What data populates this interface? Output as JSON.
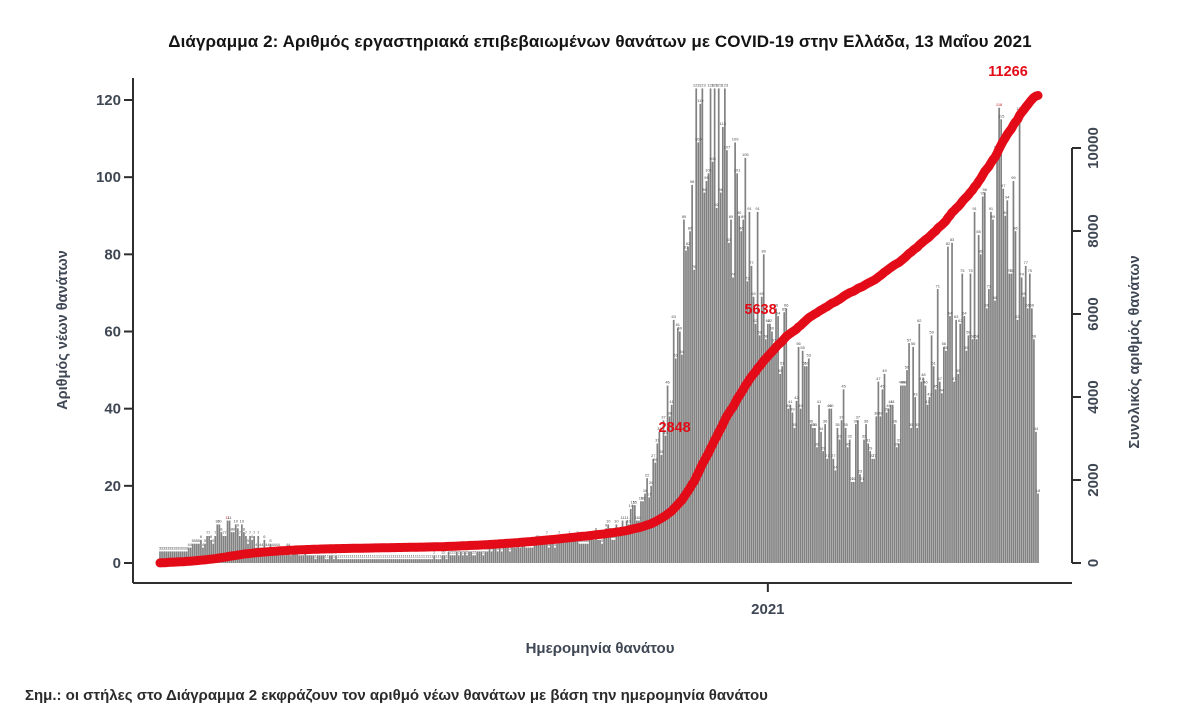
{
  "page": {
    "note": "Σημ.: οι στήλες στο Διάγραμμα 2 εκφράζουν τον αριθμό νέων θανάτων με βάση την ημερομηνία θανάτου"
  },
  "chart_data": {
    "type": "bar",
    "title": "Διάγραμμα 2: Αριθμός εργαστηριακά επιβεβαιωμένων θανάτων με COVID-19 στην Ελλάδα, 13 Μαΐου 2021",
    "xlabel": "Ημερομηνία θανάτου",
    "ylabel_left": "Αριθμός νέων θανάτων",
    "ylabel_right": "Συνολικός αριθμός θανάτων",
    "x_tick_label": "2021",
    "x_tick_day_index": 297,
    "yticks_left": [
      0,
      20,
      40,
      60,
      80,
      100,
      120
    ],
    "yticks_right": [
      0,
      2000,
      4000,
      6000,
      8000,
      10000
    ],
    "ylim_left": [
      0,
      125
    ],
    "ylim_right": [
      0,
      10500
    ],
    "n_days": 430,
    "daily_anchors": [
      [
        0,
        3
      ],
      [
        8,
        3
      ],
      [
        14,
        3.5
      ],
      [
        20,
        5
      ],
      [
        26,
        7
      ],
      [
        32,
        9
      ],
      [
        36,
        10
      ],
      [
        42,
        7
      ],
      [
        50,
        5
      ],
      [
        60,
        3
      ],
      [
        72,
        2
      ],
      [
        85,
        1.2
      ],
      [
        100,
        0.8
      ],
      [
        115,
        0.8
      ],
      [
        130,
        1.2
      ],
      [
        145,
        2
      ],
      [
        160,
        3
      ],
      [
        172,
        4
      ],
      [
        185,
        5
      ],
      [
        198,
        5.5
      ],
      [
        210,
        6
      ],
      [
        222,
        8
      ],
      [
        232,
        12
      ],
      [
        240,
        20
      ],
      [
        248,
        38
      ],
      [
        254,
        60
      ],
      [
        260,
        85
      ],
      [
        265,
        110
      ],
      [
        268,
        121
      ],
      [
        271,
        100
      ],
      [
        274,
        108
      ],
      [
        277,
        113
      ],
      [
        281,
        95
      ],
      [
        286,
        84
      ],
      [
        292,
        70
      ],
      [
        298,
        62
      ],
      [
        306,
        50
      ],
      [
        314,
        44
      ],
      [
        322,
        36
      ],
      [
        330,
        30
      ],
      [
        338,
        28
      ],
      [
        346,
        29
      ],
      [
        354,
        33
      ],
      [
        362,
        40
      ],
      [
        370,
        48
      ],
      [
        378,
        57
      ],
      [
        386,
        64
      ],
      [
        392,
        72
      ],
      [
        398,
        77
      ],
      [
        404,
        85
      ],
      [
        410,
        92
      ],
      [
        414,
        95
      ],
      [
        418,
        84
      ],
      [
        421,
        78
      ],
      [
        424,
        74
      ],
      [
        426,
        66
      ],
      [
        427,
        58
      ],
      [
        428,
        34
      ],
      [
        429,
        18
      ]
    ],
    "series": [
      {
        "name": "Αριθμός νέων θανάτων",
        "style": "bar"
      },
      {
        "name": "Συνολικός αριθμός θανάτων (αθροιστική καμπύλη)",
        "style": "line"
      }
    ],
    "annotations": [
      {
        "value": 2848
      },
      {
        "value": 5638
      },
      {
        "value": 11266,
        "final": true
      }
    ],
    "colors": {
      "bar": "#818181",
      "line": "#e30b17",
      "annotation": "#e30b17",
      "axis": "#2e2e2e",
      "tick_label": "#3e4753",
      "bar_label": "#4c4c4c",
      "bar_label_peak": "#cc2222"
    }
  }
}
